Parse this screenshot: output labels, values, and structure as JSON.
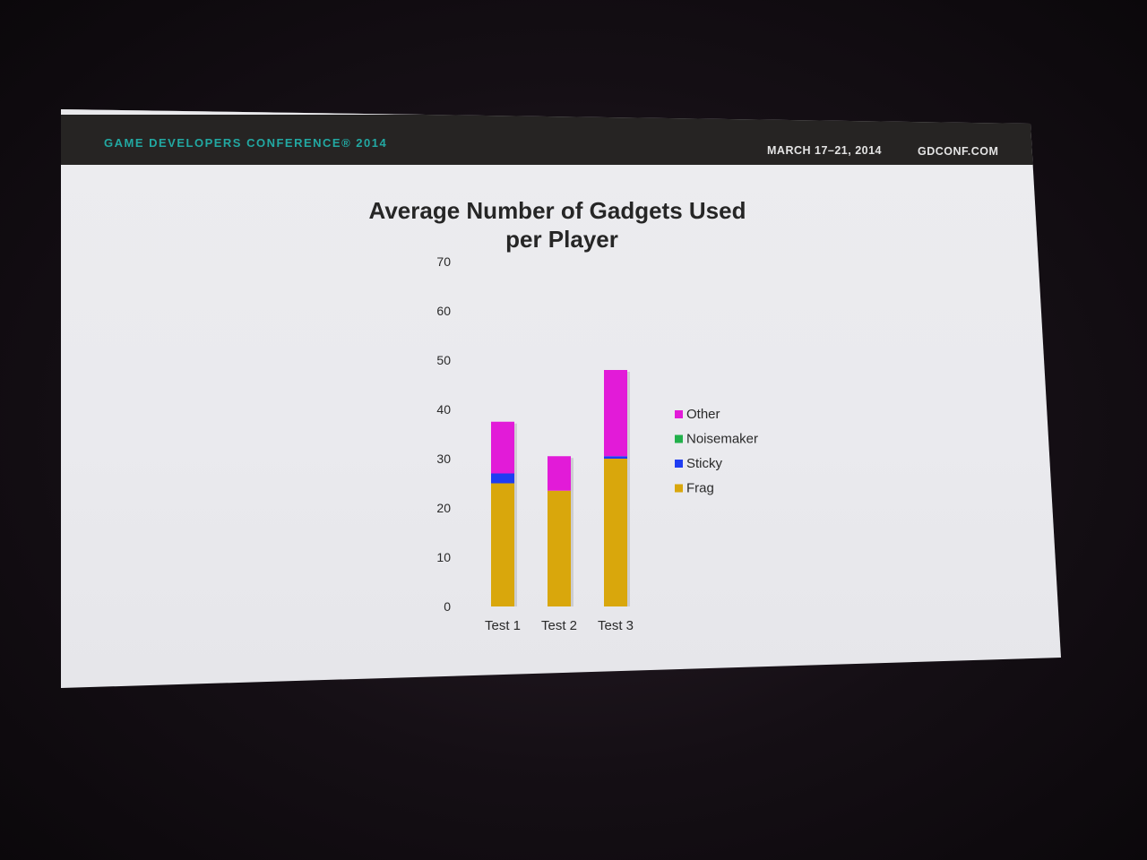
{
  "slide": {
    "conference_name": "GAME DEVELOPERS CONFERENCE® 2014",
    "dates": "MARCH 17–21, 2014",
    "website": "GDCONF.COM"
  },
  "chart_data": {
    "type": "bar",
    "stacked": true,
    "title_lines": [
      "Average Number of Gadgets Used",
      "per Player"
    ],
    "categories": [
      "Test 1",
      "Test 2",
      "Test 3"
    ],
    "series": [
      {
        "name": "Frag",
        "color": "#d9a70c",
        "values": [
          25,
          23.5,
          30
        ]
      },
      {
        "name": "Sticky",
        "color": "#1f3df2",
        "values": [
          2,
          0,
          0.5
        ]
      },
      {
        "name": "Noisemaker",
        "color": "#22b04b",
        "values": [
          0,
          0,
          0
        ]
      },
      {
        "name": "Other",
        "color": "#e21bd8",
        "values": [
          10.5,
          7,
          17.5
        ]
      }
    ],
    "yticks": [
      0,
      10,
      20,
      30,
      40,
      50,
      60,
      70
    ],
    "ylim": [
      0,
      70
    ],
    "legend_order": [
      "Other",
      "Noisemaker",
      "Sticky",
      "Frag"
    ],
    "legend_position": "right",
    "grid": false
  }
}
